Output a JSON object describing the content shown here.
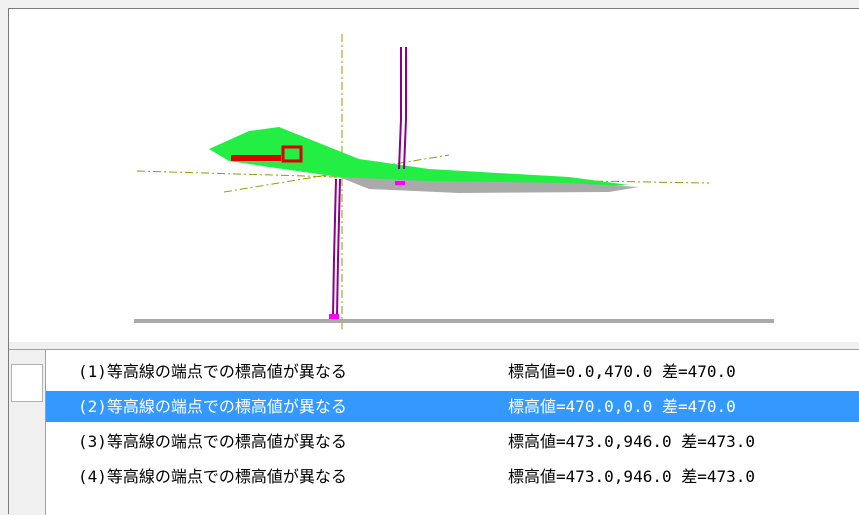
{
  "list": {
    "selected_index": 1,
    "rows": [
      {
        "message": "(1)等高線の端点での標高値が異なる",
        "detail": "標高値=0.0,470.0 差=470.0"
      },
      {
        "message": "(2)等高線の端点での標高値が異なる",
        "detail": "標高値=470.0,0.0 差=470.0"
      },
      {
        "message": "(3)等高線の端点での標高値が異なる",
        "detail": "標高値=473.0,946.0 差=473.0"
      },
      {
        "message": "(4)等高線の端点での標高値が異なる",
        "detail": "標高値=473.0,946.0 差=473.0"
      }
    ]
  }
}
